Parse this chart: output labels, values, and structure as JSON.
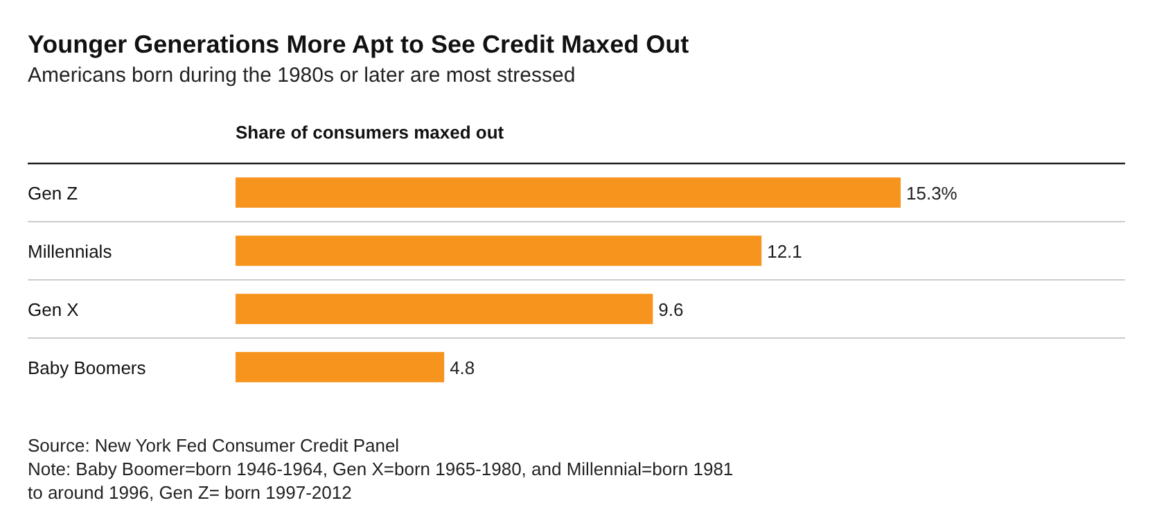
{
  "chart_data": {
    "type": "bar",
    "orientation": "horizontal",
    "title": "Younger Generations More Apt to See Credit Maxed Out",
    "subtitle": "Americans born during the 1980s or later are most stressed",
    "xlabel": "Share of consumers maxed out",
    "categories": [
      "Gen Z",
      "Millennials",
      "Gen X",
      "Baby Boomers"
    ],
    "values": [
      15.3,
      12.1,
      9.6,
      4.8
    ],
    "value_labels": [
      "15.3%",
      "12.1",
      "9.6",
      "4.8"
    ],
    "color": "#f7941d",
    "annotations": [
      "Source: New York Fed Consumer Credit Panel",
      "Note: Baby Boomer=born 1946-1964, Gen X=born 1965-1980, and Millennial=born 1981",
      "to around 1996, Gen Z= born 1997-2012"
    ]
  }
}
